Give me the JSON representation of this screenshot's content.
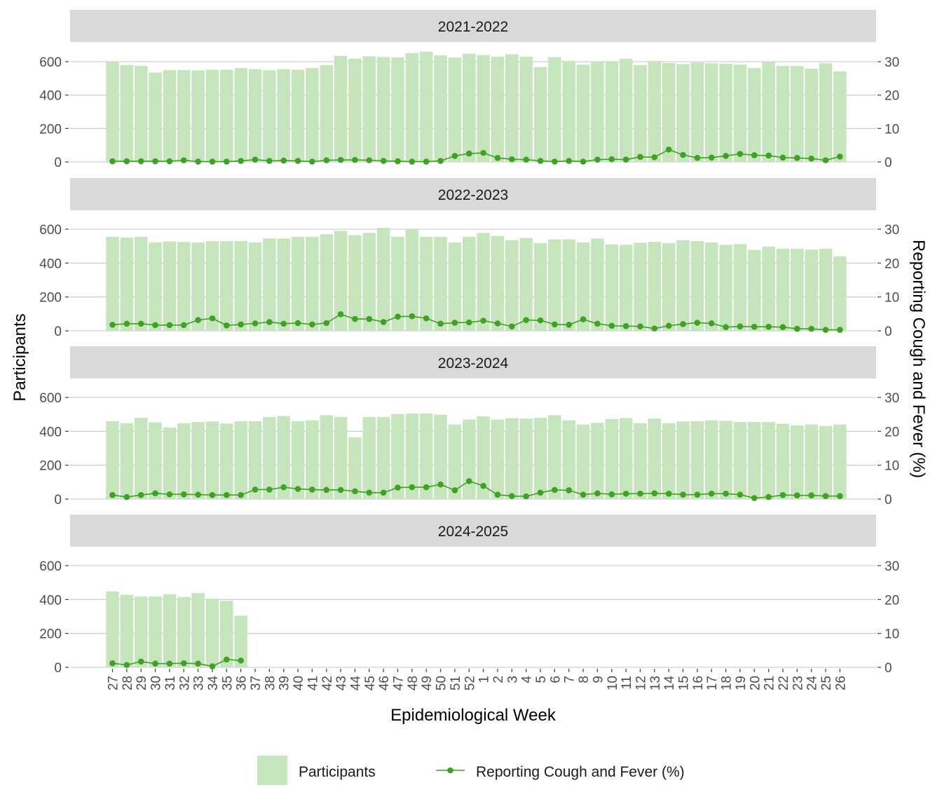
{
  "chart_data": {
    "type": "bar",
    "facets": [
      "2021-2022",
      "2022-2023",
      "2023-2024",
      "2024-2025"
    ],
    "categories": [
      "27",
      "28",
      "29",
      "30",
      "31",
      "32",
      "33",
      "34",
      "35",
      "36",
      "37",
      "38",
      "39",
      "40",
      "41",
      "42",
      "43",
      "44",
      "45",
      "46",
      "47",
      "48",
      "49",
      "50",
      "51",
      "52",
      "1",
      "2",
      "3",
      "4",
      "5",
      "6",
      "7",
      "8",
      "9",
      "10",
      "11",
      "12",
      "13",
      "14",
      "15",
      "16",
      "17",
      "18",
      "19",
      "20",
      "21",
      "22",
      "23",
      "24",
      "25",
      "26"
    ],
    "xlabel": "Epidemiological Week",
    "ylabel": "Participants",
    "y2label": "Reporting Cough and Fever (%)",
    "ylim": [
      0,
      600
    ],
    "y2lim": [
      0,
      30
    ],
    "yticks": [
      0,
      200,
      400,
      600
    ],
    "y2ticks": [
      0,
      10,
      20,
      30
    ],
    "grid": true,
    "legend_position": "bottom",
    "legend": [
      {
        "label": "Participants",
        "kind": "bar"
      },
      {
        "label": "Reporting Cough and Fever (%)",
        "kind": "line"
      }
    ],
    "colors": {
      "bar": "#c7e5bc",
      "line": "#3fa125",
      "strip": "#d9d9d9",
      "grid": "#cfcfcf",
      "axis_text": "#4d4d4d",
      "title_text": "#000000"
    },
    "series": [
      {
        "facet": "2021-2022",
        "participants": [
          600,
          580,
          575,
          535,
          550,
          550,
          548,
          552,
          552,
          562,
          555,
          548,
          555,
          552,
          562,
          580,
          635,
          618,
          632,
          628,
          626,
          652,
          660,
          638,
          625,
          648,
          640,
          630,
          645,
          630,
          568,
          628,
          605,
          582,
          600,
          600,
          618,
          580,
          605,
          592,
          585,
          595,
          590,
          588,
          582,
          562,
          600,
          575,
          575,
          558,
          590,
          542
        ],
        "cough_fever": [
          0.2,
          0.2,
          0.2,
          0.2,
          0.2,
          0.5,
          0.1,
          0.1,
          0.1,
          0.3,
          0.7,
          0.3,
          0.4,
          0.3,
          0.1,
          0.5,
          0.6,
          0.6,
          0.5,
          0.3,
          0.2,
          0.1,
          0.1,
          0.3,
          1.8,
          2.5,
          2.7,
          1.2,
          0.8,
          0.7,
          0.3,
          0.1,
          0.3,
          0.1,
          0.7,
          0.8,
          0.7,
          1.5,
          1.4,
          3.7,
          2.1,
          1.2,
          1.3,
          1.8,
          2.4,
          2.0,
          1.9,
          1.3,
          1.2,
          1.0,
          0.5,
          1.6
        ]
      },
      {
        "facet": "2022-2023",
        "participants": [
          555,
          550,
          555,
          522,
          528,
          525,
          522,
          530,
          530,
          530,
          522,
          545,
          545,
          555,
          555,
          570,
          590,
          565,
          578,
          608,
          555,
          600,
          555,
          555,
          522,
          555,
          578,
          560,
          535,
          548,
          518,
          540,
          540,
          522,
          545,
          510,
          508,
          520,
          525,
          518,
          535,
          530,
          522,
          508,
          512,
          478,
          498,
          485,
          485,
          480,
          485,
          440
        ],
        "cough_fever": [
          1.8,
          2.1,
          2.1,
          1.7,
          1.7,
          1.7,
          3.2,
          3.7,
          1.6,
          1.9,
          2.2,
          2.6,
          2.1,
          2.3,
          1.9,
          2.3,
          4.9,
          3.5,
          3.5,
          2.6,
          4.2,
          4.3,
          3.7,
          2.1,
          2.4,
          2.5,
          3.0,
          2.2,
          1.3,
          3.2,
          3.1,
          1.9,
          1.8,
          3.4,
          2.1,
          1.5,
          1.4,
          1.3,
          0.7,
          1.5,
          2.0,
          2.4,
          2.2,
          1.1,
          1.3,
          1.2,
          1.2,
          1.1,
          0.6,
          0.6,
          0.3,
          0.3
        ]
      },
      {
        "facet": "2023-2024",
        "participants": [
          460,
          448,
          480,
          452,
          422,
          448,
          455,
          458,
          446,
          460,
          460,
          485,
          490,
          460,
          465,
          495,
          485,
          365,
          485,
          485,
          502,
          505,
          505,
          498,
          440,
          470,
          488,
          470,
          478,
          475,
          480,
          495,
          465,
          440,
          450,
          472,
          478,
          448,
          475,
          448,
          458,
          460,
          465,
          462,
          455,
          455,
          455,
          445,
          435,
          440,
          432,
          440
        ],
        "cough_fever": [
          1.2,
          0.6,
          1.2,
          1.7,
          1.4,
          1.4,
          1.3,
          1.2,
          1.2,
          1.2,
          2.8,
          2.8,
          3.5,
          3.0,
          2.8,
          2.7,
          2.7,
          2.3,
          1.9,
          1.9,
          3.4,
          3.5,
          3.5,
          4.3,
          2.6,
          5.3,
          3.9,
          1.3,
          0.9,
          0.8,
          1.9,
          2.7,
          2.6,
          1.3,
          1.7,
          1.4,
          1.6,
          1.6,
          1.7,
          1.6,
          1.3,
          1.3,
          1.6,
          1.6,
          1.3,
          0.3,
          0.6,
          1.2,
          1.1,
          1.1,
          0.9,
          0.9
        ]
      },
      {
        "facet": "2024-2025",
        "participants": [
          448,
          428,
          418,
          418,
          432,
          415,
          438,
          405,
          392,
          305
        ],
        "cough_fever": [
          1.2,
          0.7,
          1.7,
          1.1,
          1.1,
          1.2,
          1.1,
          0.3,
          2.3,
          2.0
        ]
      }
    ]
  }
}
